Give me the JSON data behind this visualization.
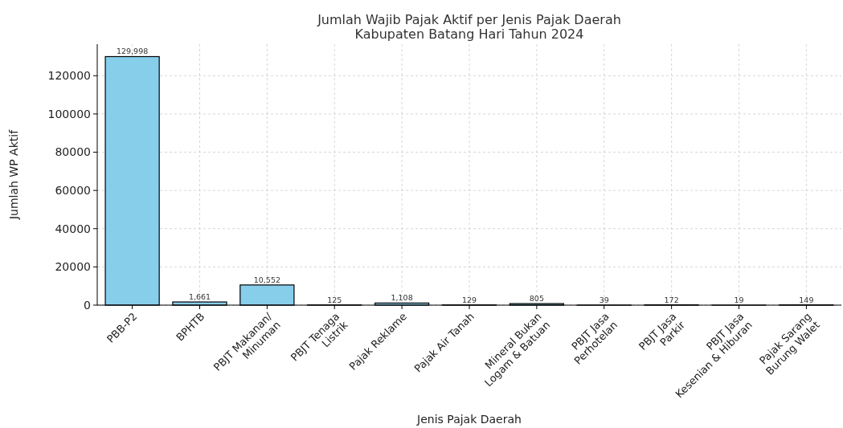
{
  "chart_data": {
    "type": "bar",
    "title": "Jumlah Wajib Pajak Aktif per Jenis Pajak Daerah\nKabupaten Batang Hari Tahun 2024",
    "xlabel": "Jenis Pajak Daerah",
    "ylabel": "Jumlah WP Aktif",
    "categories": [
      "PBB-P2",
      "BPHTB",
      "PBJT Makanan/\nMinuman",
      "PBJT Tenaga\nListrik",
      "Pajak Reklame",
      "Pajak Air Tanah",
      "Mineral Bukan\nLogam & Batuan",
      "PBJT Jasa\nPerhotelan",
      "PBJT Jasa\nParkir",
      "PBJT Jasa\nKesenian & Hiburan",
      "Pajak Sarang\nBurung Walet"
    ],
    "values": [
      129998,
      1661,
      10552,
      125,
      1108,
      129,
      805,
      39,
      172,
      19,
      149
    ],
    "value_labels": [
      "129,998",
      "1,661",
      "10,552",
      "125",
      "1,108",
      "129",
      "805",
      "39",
      "172",
      "19",
      "149"
    ],
    "color": "#87ceeb",
    "ylim": [
      0,
      136500
    ],
    "yticks": [
      0,
      20000,
      40000,
      60000,
      80000,
      100000,
      120000
    ],
    "grid": true
  }
}
